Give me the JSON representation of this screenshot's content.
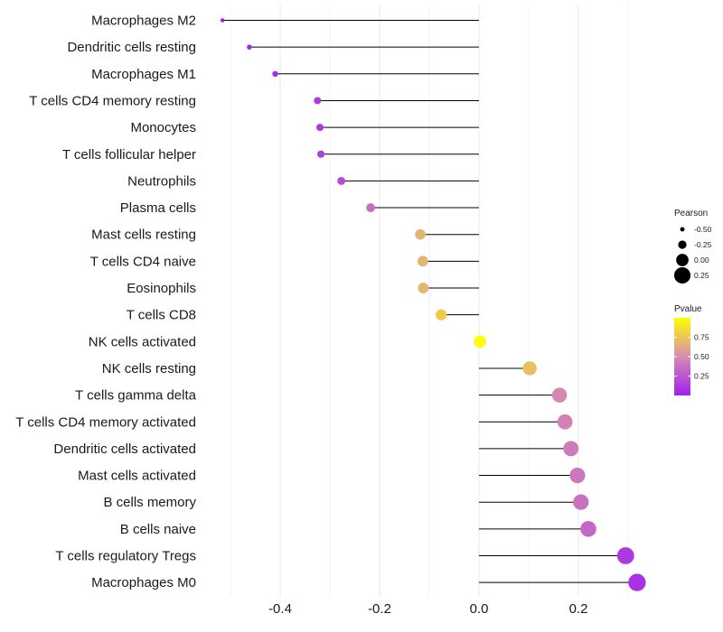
{
  "chart_data": {
    "type": "lollipop",
    "title": "",
    "xlabel": "",
    "ylabel": "",
    "xlim": [
      -0.56,
      0.34
    ],
    "xticks": [
      -0.4,
      -0.2,
      0.0,
      0.2
    ],
    "xtick_labels": [
      "-0.4",
      "-0.2",
      "0.0",
      "0.2"
    ],
    "grid": true,
    "categories": [
      "Macrophages M2",
      "Dendritic cells resting",
      "Macrophages M1",
      "T cells CD4 memory resting",
      "Monocytes",
      "T cells follicular helper",
      "Neutrophils",
      "Plasma cells",
      "Mast cells resting",
      "T cells CD4 naive",
      "Eosinophils",
      "T cells CD8",
      "NK cells activated",
      "NK cells resting",
      "T cells gamma delta",
      "T cells CD4 memory activated",
      "Dendritic cells activated",
      "Mast cells activated",
      "B cells memory",
      "B cells naive",
      "T cells regulatory  Tregs ",
      "Macrophages M0"
    ],
    "pearson": [
      -0.516,
      -0.462,
      -0.41,
      -0.325,
      -0.32,
      -0.318,
      -0.277,
      -0.218,
      -0.118,
      -0.113,
      -0.112,
      -0.076,
      0.002,
      0.102,
      0.162,
      0.173,
      0.185,
      0.198,
      0.205,
      0.22,
      0.295,
      0.318
    ],
    "pvalue": [
      0.01,
      0.03,
      0.06,
      0.12,
      0.12,
      0.13,
      0.2,
      0.35,
      0.68,
      0.68,
      0.68,
      0.78,
      0.99,
      0.72,
      0.48,
      0.45,
      0.42,
      0.4,
      0.38,
      0.33,
      0.12,
      0.08
    ],
    "size_legend": {
      "title": "Pearson",
      "values": [
        -0.5,
        -0.25,
        0.0,
        0.25
      ],
      "labels": [
        "-0.50",
        "-0.25",
        "0.00",
        "0.25"
      ]
    },
    "color_legend": {
      "title": "Pvalue",
      "ticks": [
        0.25,
        0.5,
        0.75
      ],
      "labels": [
        "0.25",
        "0.50",
        "0.75"
      ],
      "range": [
        0.0,
        1.0
      ],
      "low_color": "#a020f0",
      "mid_color": "#d68cb0",
      "high_color": "#ffff00"
    },
    "stem_color": "#000000",
    "grid_color": "#ebebeb"
  }
}
